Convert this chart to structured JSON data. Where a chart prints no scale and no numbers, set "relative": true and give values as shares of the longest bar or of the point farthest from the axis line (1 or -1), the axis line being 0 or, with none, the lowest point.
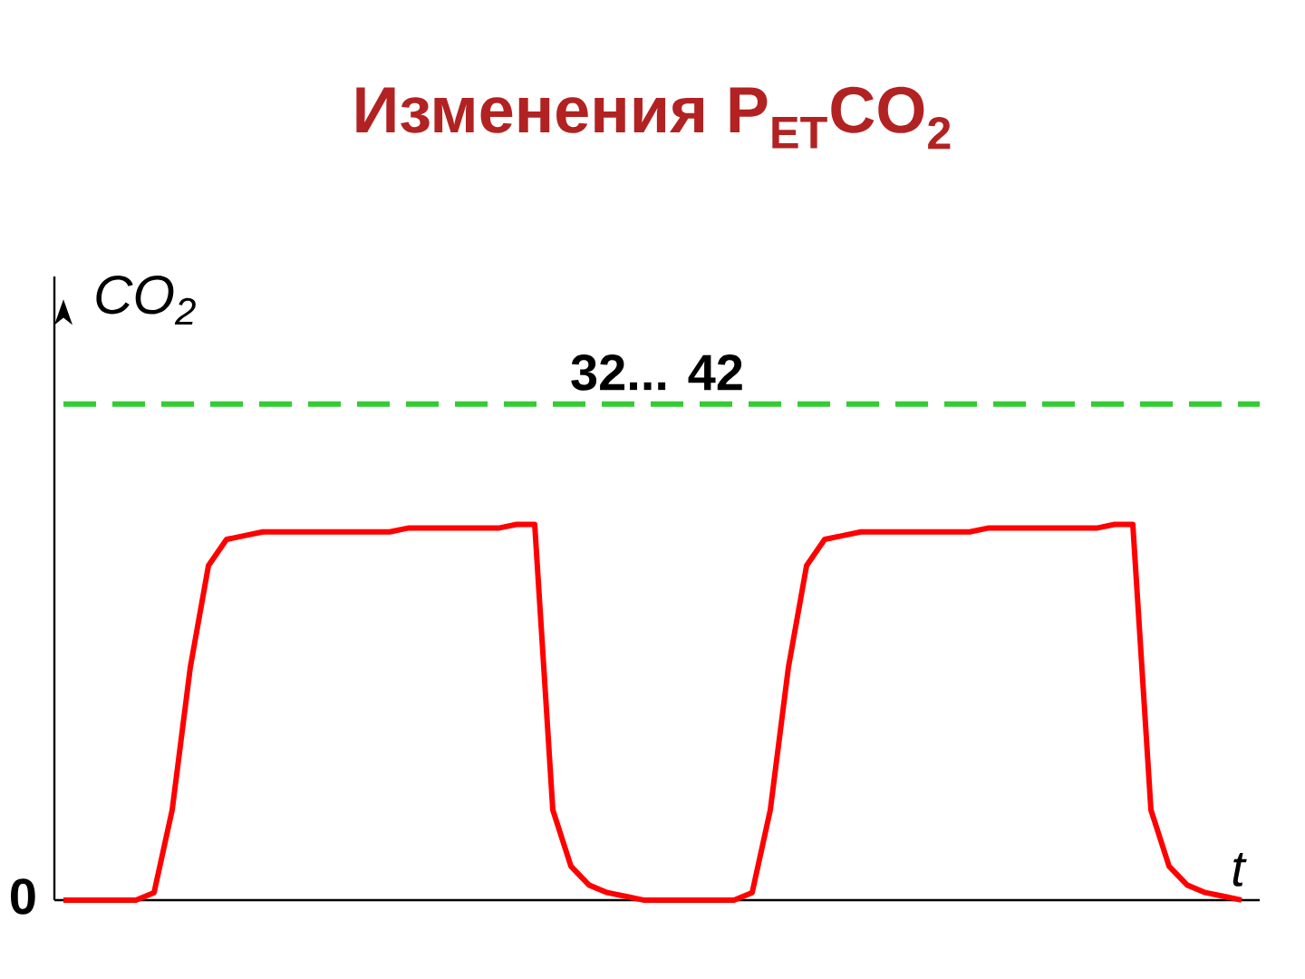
{
  "chart_data": {
    "type": "line",
    "title": "Изменения P$_{ET}$CO$_{2}$",
    "ylabel": "CO$_{2}$",
    "xlabel": "t",
    "relative": true,
    "tick_labels": false,
    "annotations": [
      "0",
      "32... 42"
    ],
    "categories": [
      null,
      null,
      null,
      null,
      null,
      null,
      null,
      null,
      null,
      null,
      null,
      null,
      null,
      null,
      null,
      null,
      null,
      null,
      null,
      null,
      null,
      null,
      null,
      null,
      null,
      null,
      null,
      null,
      null,
      null,
      null,
      null,
      null,
      null,
      null,
      null,
      null,
      null,
      null,
      null,
      null,
      null,
      null,
      null,
      null,
      null,
      null,
      null,
      null,
      null,
      null,
      null,
      null,
      null,
      null,
      null,
      null,
      null,
      null,
      null,
      null,
      null,
      null,
      null,
      null,
      null
    ],
    "series": [
      {
        "color": "#ff0000",
        "values": [
          0,
          0,
          0,
          0,
          0,
          0.02,
          0.24,
          0.62,
          0.89,
          0.96,
          0.97,
          0.98,
          0.98,
          0.98,
          0.98,
          0.98,
          0.98,
          0.98,
          0.98,
          0.99,
          0.99,
          0.99,
          0.99,
          0.99,
          0.99,
          1,
          1,
          0.24,
          0.09,
          0.04,
          0.02,
          0.01,
          0,
          0,
          0,
          0,
          0,
          0,
          0.02,
          0.24,
          0.62,
          0.89,
          0.96,
          0.97,
          0.98,
          0.98,
          0.98,
          0.98,
          0.98,
          0.98,
          0.98,
          0.99,
          0.99,
          0.99,
          0.99,
          0.99,
          0.99,
          0.99,
          1,
          1,
          0.24,
          0.09,
          0.04,
          0.02,
          0.01,
          0
        ]
      }
    ],
    "ref_lines": [
      {
        "axis": "y",
        "value": 1.32,
        "color": "#33cc33",
        "line_style": "dashed"
      }
    ]
  }
}
